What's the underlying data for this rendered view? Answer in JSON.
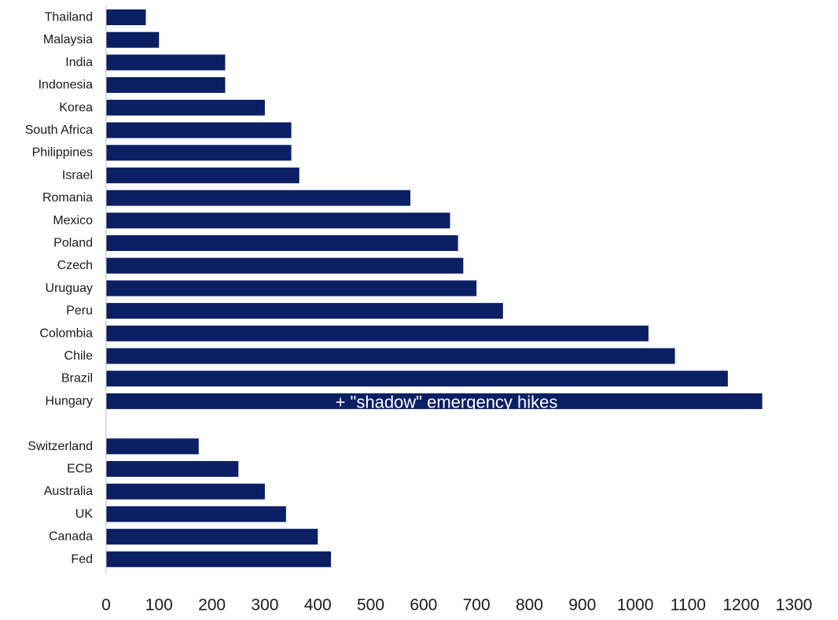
{
  "chart_data": {
    "type": "bar",
    "orientation": "horizontal",
    "title": "",
    "xlabel": "",
    "ylabel": "",
    "xlim": [
      0,
      1300
    ],
    "x_ticks": [
      0,
      100,
      200,
      300,
      400,
      500,
      600,
      700,
      800,
      900,
      1000,
      1100,
      1200,
      1300
    ],
    "grid": false,
    "bar_color": "#0a1f64",
    "groups": [
      {
        "categories": [
          "Thailand",
          "Malaysia",
          "India",
          "Indonesia",
          "Korea",
          "South Africa",
          "Philippines",
          "Israel",
          "Romania",
          "Mexico",
          "Poland",
          "Czech",
          "Uruguay",
          "Peru",
          "Colombia",
          "Chile",
          "Brazil",
          "Hungary"
        ],
        "values": [
          75,
          100,
          225,
          225,
          300,
          350,
          350,
          365,
          575,
          650,
          665,
          675,
          700,
          750,
          1025,
          1075,
          1175,
          1240
        ]
      },
      {
        "categories": [
          "Switzerland",
          "ECB",
          "Australia",
          "UK ",
          "Canada",
          "Fed"
        ],
        "values": [
          175,
          250,
          300,
          340,
          400,
          425
        ]
      }
    ],
    "annotations": [
      {
        "text": "+ \"shadow\" emergency hikes",
        "category": "Hungary"
      }
    ]
  }
}
